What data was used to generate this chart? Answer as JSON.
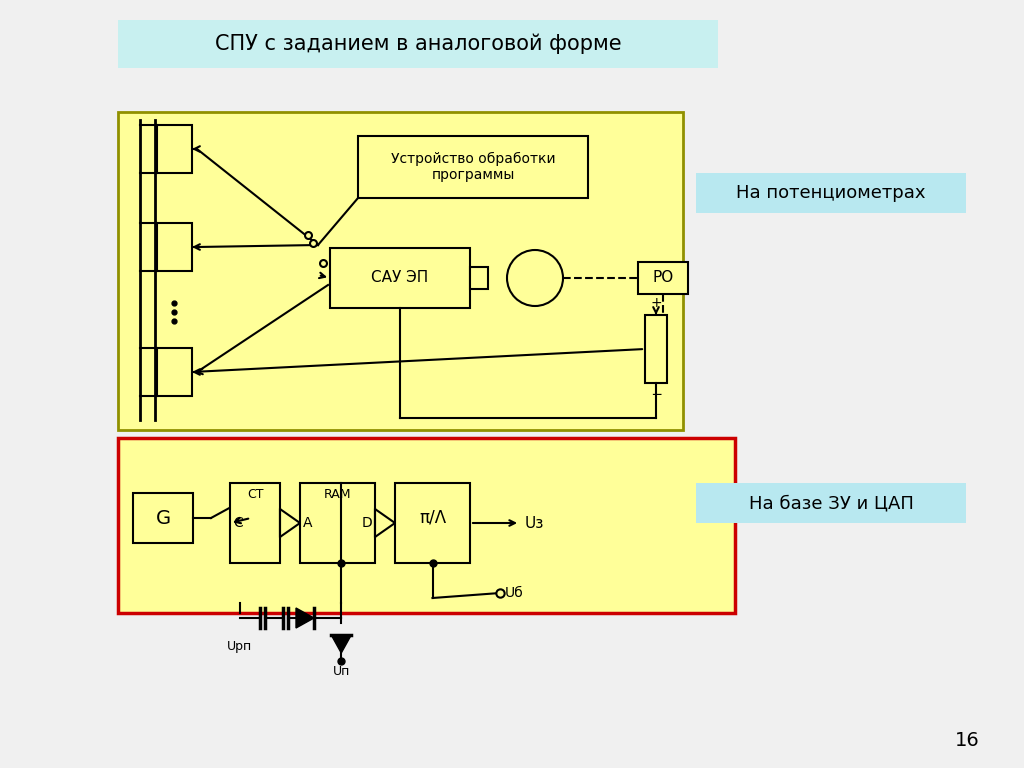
{
  "title": "СПУ с заданием в аналоговой форме",
  "title_bg": "#c8f0f0",
  "bg_color": "#f0f0f0",
  "yellow_bg": "#ffff99",
  "label1": "На потенциометрах",
  "label1_bg": "#b8e8f0",
  "label2": "На базе ЗУ и ЦАП",
  "label2_bg": "#b8e8f0",
  "page_num": "16",
  "box1_text": "Устройство обработки\nпрограммы",
  "box2_text": "САУ ЭП",
  "box3_text": "РО",
  "box_G": "G",
  "box_CT": "CT",
  "box_RAM": "RAM",
  "box_DAC": "π/Λ",
  "upper_border": "#909000",
  "lower_border": "#cc0000",
  "line_color": "#000000"
}
